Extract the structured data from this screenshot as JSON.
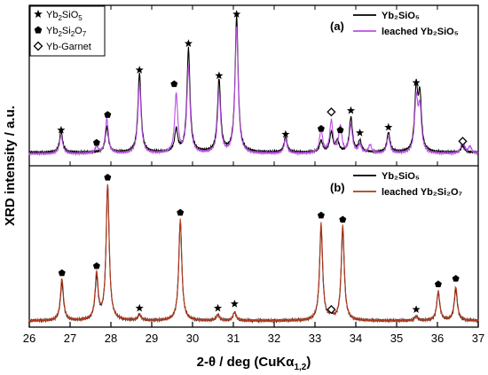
{
  "chart_data": {
    "type": "line",
    "xlabel": "2-θ / deg (CuKα",
    "xlabel_sub": "1,2",
    "xlabel_close": ")",
    "ylabel": "XRD intensity / a.u.",
    "xlim": [
      26,
      37
    ],
    "x_ticks": [
      26,
      27,
      28,
      29,
      30,
      31,
      32,
      33,
      34,
      35,
      36,
      37
    ],
    "x_tick_labels": [
      "26",
      "27",
      "28",
      "29",
      "30",
      "31",
      "32",
      "33",
      "34",
      "35",
      "36",
      "37"
    ],
    "grid": false,
    "marker_legend": {
      "position": "top-left",
      "entries": [
        {
          "symbol": "star",
          "text": "Yb",
          "sub": "2",
          "text2": "SiO",
          "sub2": "5",
          "text3": ""
        },
        {
          "symbol": "pentagon",
          "text": "Yb",
          "sub": "2",
          "text2": "Si",
          "sub2": "2",
          "text3": "O",
          "sub3": "7"
        },
        {
          "symbol": "diamond",
          "text": "Yb-Garnet"
        }
      ]
    },
    "panels": [
      {
        "label": "(a)",
        "legend_position": "top-right",
        "series": [
          {
            "name": "Yb₂SiO₅",
            "color": "#000000",
            "peaks": [
              [
                26.78,
                0.15
              ],
              [
                27.9,
                0.18
              ],
              [
                28.7,
                0.57
              ],
              [
                29.6,
                0.16
              ],
              [
                29.9,
                0.74
              ],
              [
                30.65,
                0.52
              ],
              [
                31.08,
                0.97
              ],
              [
                32.28,
                0.11
              ],
              [
                33.15,
                0.08
              ],
              [
                33.4,
                0.14
              ],
              [
                33.55,
                0.08
              ],
              [
                33.88,
                0.25
              ],
              [
                34.1,
                0.08
              ],
              [
                34.8,
                0.14
              ],
              [
                35.48,
                0.44
              ],
              [
                35.57,
                0.38
              ],
              [
                36.62,
                0.05
              ]
            ],
            "baseline": 0.07
          },
          {
            "name": "leached Yb₂SiO₅",
            "color": "#b84fe0",
            "peaks": [
              [
                26.78,
                0.13
              ],
              [
                27.65,
                0.05
              ],
              [
                27.9,
                0.25
              ],
              [
                28.7,
                0.5
              ],
              [
                29.6,
                0.42
              ],
              [
                29.9,
                0.62
              ],
              [
                30.65,
                0.44
              ],
              [
                31.08,
                0.9
              ],
              [
                32.28,
                0.1
              ],
              [
                33.15,
                0.17
              ],
              [
                33.4,
                0.23
              ],
              [
                33.62,
                0.19
              ],
              [
                33.88,
                0.2
              ],
              [
                34.1,
                0.06
              ],
              [
                34.35,
                0.06
              ],
              [
                34.8,
                0.12
              ],
              [
                35.48,
                0.38
              ],
              [
                35.57,
                0.31
              ],
              [
                36.62,
                0.1
              ],
              [
                36.8,
                0.05
              ]
            ],
            "baseline": 0.06
          }
        ],
        "markers": [
          {
            "x": 26.78,
            "y": 0.23,
            "symbol": "star"
          },
          {
            "x": 27.65,
            "y": 0.14,
            "symbol": "pentagon"
          },
          {
            "x": 27.92,
            "y": 0.34,
            "symbol": "pentagon"
          },
          {
            "x": 28.7,
            "y": 0.66,
            "symbol": "star"
          },
          {
            "x": 29.55,
            "y": 0.56,
            "symbol": "pentagon"
          },
          {
            "x": 29.9,
            "y": 0.85,
            "symbol": "star"
          },
          {
            "x": 30.65,
            "y": 0.62,
            "symbol": "star"
          },
          {
            "x": 31.08,
            "y": 1.06,
            "symbol": "star"
          },
          {
            "x": 32.28,
            "y": 0.2,
            "symbol": "star"
          },
          {
            "x": 33.15,
            "y": 0.24,
            "symbol": "pentagon"
          },
          {
            "x": 33.4,
            "y": 0.36,
            "symbol": "diamond"
          },
          {
            "x": 33.62,
            "y": 0.23,
            "symbol": "pentagon"
          },
          {
            "x": 33.88,
            "y": 0.37,
            "symbol": "star"
          },
          {
            "x": 34.1,
            "y": 0.21,
            "symbol": "star"
          },
          {
            "x": 34.8,
            "y": 0.25,
            "symbol": "star"
          },
          {
            "x": 35.48,
            "y": 0.57,
            "symbol": "star"
          },
          {
            "x": 36.62,
            "y": 0.15,
            "symbol": "diamond"
          }
        ]
      },
      {
        "label": "(b)",
        "legend_position": "top-right",
        "series": [
          {
            "name": "Yb₂SiO₅",
            "color": "#000000",
            "peaks": [
              [
                26.8,
                0.27
              ],
              [
                27.65,
                0.3
              ],
              [
                27.92,
                0.96
              ],
              [
                28.7,
                0.04
              ],
              [
                29.7,
                0.71
              ],
              [
                30.62,
                0.04
              ],
              [
                31.03,
                0.06
              ],
              [
                33.15,
                0.66
              ],
              [
                33.4,
                0.03
              ],
              [
                33.68,
                0.65
              ],
              [
                35.48,
                0.03
              ],
              [
                36.02,
                0.2
              ],
              [
                36.45,
                0.22
              ]
            ],
            "baseline": 0.02
          },
          {
            "name": "leached Yb₂Si₂O₇",
            "color": "#b33a1e",
            "peaks": [
              [
                26.8,
                0.3
              ],
              [
                27.65,
                0.33
              ],
              [
                27.92,
                0.97
              ],
              [
                28.7,
                0.04
              ],
              [
                29.7,
                0.72
              ],
              [
                30.62,
                0.04
              ],
              [
                31.03,
                0.06
              ],
              [
                33.15,
                0.69
              ],
              [
                33.4,
                0.03
              ],
              [
                33.68,
                0.68
              ],
              [
                35.48,
                0.03
              ],
              [
                36.02,
                0.21
              ],
              [
                36.45,
                0.24
              ]
            ],
            "baseline": 0.02
          }
        ],
        "markers": [
          {
            "x": 26.8,
            "y": 0.36,
            "symbol": "pentagon"
          },
          {
            "x": 27.65,
            "y": 0.41,
            "symbol": "pentagon"
          },
          {
            "x": 27.92,
            "y": 1.04,
            "symbol": "pentagon"
          },
          {
            "x": 28.7,
            "y": 0.11,
            "symbol": "star"
          },
          {
            "x": 29.7,
            "y": 0.79,
            "symbol": "pentagon"
          },
          {
            "x": 30.62,
            "y": 0.11,
            "symbol": "star"
          },
          {
            "x": 31.03,
            "y": 0.14,
            "symbol": "star"
          },
          {
            "x": 33.15,
            "y": 0.77,
            "symbol": "pentagon"
          },
          {
            "x": 33.4,
            "y": 0.1,
            "symbol": "diamond"
          },
          {
            "x": 33.68,
            "y": 0.74,
            "symbol": "pentagon"
          },
          {
            "x": 35.48,
            "y": 0.1,
            "symbol": "star"
          },
          {
            "x": 36.02,
            "y": 0.28,
            "symbol": "pentagon"
          },
          {
            "x": 36.45,
            "y": 0.32,
            "symbol": "pentagon"
          }
        ]
      }
    ]
  }
}
